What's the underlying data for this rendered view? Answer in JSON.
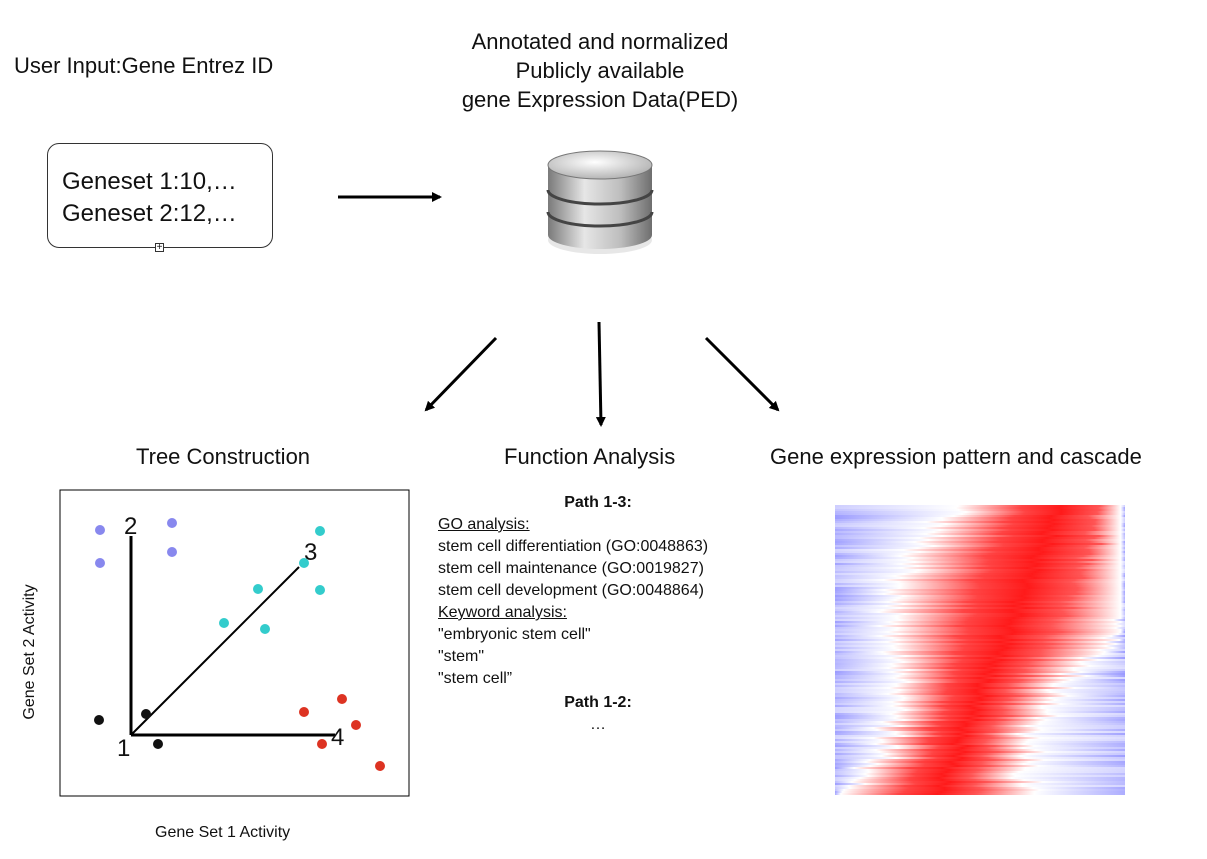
{
  "input": {
    "title": "User Input:Gene Entrez ID",
    "lines": [
      "Geneset 1:10,…",
      "Geneset 2:12,…"
    ]
  },
  "database": {
    "title_lines": [
      "Annotated and normalized",
      "Publicly available",
      "gene Expression Data(PED)"
    ],
    "icon": "database-icon"
  },
  "sections": {
    "tree": "Tree Construction",
    "function": "Function Analysis",
    "expression": "Gene expression pattern and cascade"
  },
  "tree_plot": {
    "xlabel": "Gene Set 1 Activity",
    "ylabel": "Gene Set 2 Activity",
    "node_labels": [
      "1",
      "2",
      "3",
      "4"
    ],
    "colors": {
      "purple": "#8888ee",
      "cyan": "#33cccc",
      "red": "#dd3322",
      "black": "#111111"
    }
  },
  "function_analysis": {
    "path_a_title": "Path 1-3:",
    "go_heading": "GO analysis:",
    "go_terms": [
      "stem cell differentiation (GO:0048863)",
      "stem cell maintenance (GO:0019827)",
      "stem cell development (GO:0048864)"
    ],
    "keyword_heading": "Keyword analysis:",
    "keywords": [
      "\"embryonic stem cell\"",
      "\"stem\"",
      "\"stem cell”"
    ],
    "path_b_title": "Path 1-2:",
    "ellipsis": "…"
  },
  "heatmap": {
    "high_color": "#ff0000",
    "low_color": "#3333dd",
    "mid_color": "#ffffff"
  }
}
